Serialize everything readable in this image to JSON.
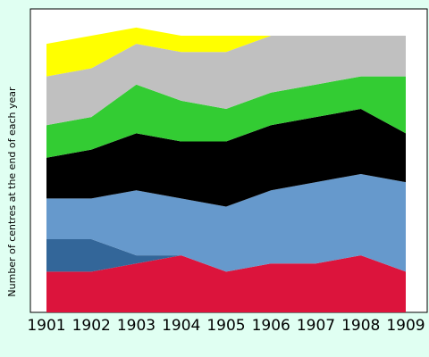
{
  "chart_data": {
    "type": "area",
    "stacked": true,
    "title": "",
    "xlabel": "",
    "ylabel": "Number of centres at the end of each year",
    "categories": [
      "1901",
      "1902",
      "1903",
      "1904",
      "1905",
      "1906",
      "1907",
      "1908",
      "1909"
    ],
    "ylim": [
      0,
      34
    ],
    "grid": false,
    "legend": "none",
    "background": "#e0fff2",
    "plot_background": "#ffffff",
    "series": [
      {
        "color": "#dc143c",
        "values": [
          5,
          5,
          6,
          7,
          5,
          6,
          6,
          7,
          5
        ]
      },
      {
        "color": "#336699",
        "values": [
          4,
          4,
          1,
          0,
          0,
          0,
          0,
          0,
          0
        ]
      },
      {
        "color": "#6699cc",
        "values": [
          5,
          5,
          8,
          7,
          8,
          9,
          10,
          10,
          11
        ]
      },
      {
        "color": "#000000",
        "values": [
          5,
          6,
          7,
          7,
          8,
          8,
          8,
          8,
          6
        ]
      },
      {
        "color": "#33cc33",
        "values": [
          4,
          4,
          6,
          5,
          4,
          4,
          4,
          4,
          7
        ]
      },
      {
        "color": "#c0c0c0",
        "values": [
          6,
          6,
          5,
          6,
          7,
          7,
          6,
          5,
          5
        ]
      },
      {
        "color": "#ffff00",
        "values": [
          4,
          4,
          2,
          2,
          2,
          0,
          0,
          0,
          0
        ]
      }
    ]
  }
}
